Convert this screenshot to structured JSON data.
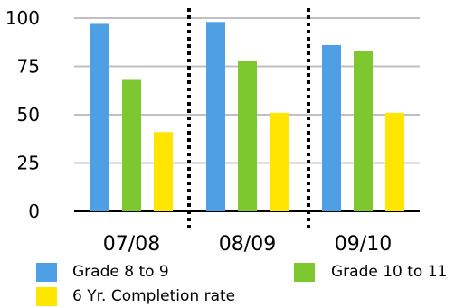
{
  "chart_data": {
    "type": "bar",
    "title": "",
    "xlabel": "",
    "ylabel": "",
    "ylim": [
      0,
      100
    ],
    "yticks": [
      0,
      25,
      50,
      75,
      100
    ],
    "grid": true,
    "legend_placement": "bottom",
    "categories": [
      "07/08",
      "08/09",
      "09/10"
    ],
    "series": [
      {
        "name": "Grade 8 to 9",
        "color": "#4F9FE4",
        "values": [
          97,
          98,
          86
        ]
      },
      {
        "name": "Grade 10 to 11",
        "color": "#7CC82E",
        "values": [
          68,
          78,
          83
        ]
      },
      {
        "name": "6 Yr. Completion rate",
        "color": "#FFE500",
        "values": [
          41,
          51,
          51
        ]
      }
    ]
  }
}
